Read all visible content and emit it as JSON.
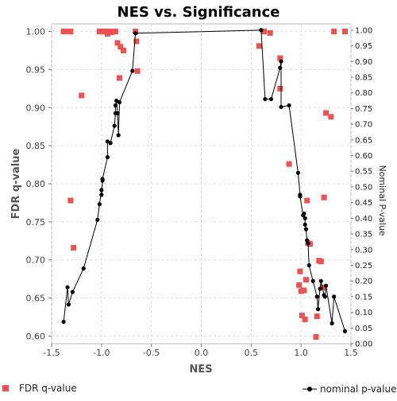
{
  "chart_data": {
    "type": "scatter",
    "title": "NES vs. Significance",
    "xlabel": "NES",
    "ylabel": "FDR q-value",
    "y2label": "Nominal P-value",
    "xlim": [
      -1.5,
      1.5
    ],
    "ylim": [
      0.59,
      1.01
    ],
    "y2lim": [
      0.0,
      1.02
    ],
    "xticks": [
      "-1.5",
      "-1.0",
      "-0.5",
      "0.0",
      "0.5",
      "1.0",
      "1.5"
    ],
    "yticks": [
      "0.60",
      "0.65",
      "0.70",
      "0.75",
      "0.80",
      "0.85",
      "0.90",
      "0.95",
      "1.00"
    ],
    "y2ticks": [
      "0.00",
      "0.05",
      "0.10",
      "0.15",
      "0.20",
      "0.25",
      "0.30",
      "0.35",
      "0.40",
      "0.45",
      "0.50",
      "0.55",
      "0.60",
      "0.65",
      "0.70",
      "0.75",
      "0.80",
      "0.85",
      "0.90",
      "0.95",
      "1.00"
    ],
    "grid": true,
    "legend_position": "bottom",
    "series": [
      {
        "name": "FDR q-value",
        "axis": "left",
        "color": "#f05050",
        "marker": "square",
        "points": [
          [
            -1.38,
            1.0
          ],
          [
            -1.35,
            1.0
          ],
          [
            -1.31,
            1.0
          ],
          [
            -1.31,
            0.778
          ],
          [
            -1.28,
            0.716
          ],
          [
            -1.2,
            0.916
          ],
          [
            -1.02,
            1.0
          ],
          [
            -1.0,
            1.0
          ],
          [
            -0.97,
            1.0
          ],
          [
            -0.95,
            1.0
          ],
          [
            -0.94,
            0.997
          ],
          [
            -0.92,
            1.0
          ],
          [
            -0.9,
            0.999
          ],
          [
            -0.87,
            1.0
          ],
          [
            -0.86,
            1.0
          ],
          [
            -0.84,
            0.985
          ],
          [
            -0.81,
            0.98
          ],
          [
            -0.82,
            0.939
          ],
          [
            -0.78,
            0.975
          ],
          [
            -0.66,
            1.0
          ],
          [
            -0.65,
            0.987
          ],
          [
            -0.64,
            0.948
          ],
          [
            0.58,
            0.981
          ],
          [
            0.63,
            1.0
          ],
          [
            0.69,
            0.998
          ],
          [
            0.79,
            0.965
          ],
          [
            0.79,
            0.925
          ],
          [
            0.88,
            0.826
          ],
          [
            0.98,
            0.667
          ],
          [
            0.99,
            0.685
          ],
          [
            1.0,
            0.659
          ],
          [
            1.01,
            0.627
          ],
          [
            1.03,
            0.66
          ],
          [
            1.04,
            0.622
          ],
          [
            1.05,
            0.674
          ],
          [
            1.06,
            0.778
          ],
          [
            1.07,
            0.722
          ],
          [
            1.09,
            0.721
          ],
          [
            1.15,
            0.599
          ],
          [
            1.16,
            0.626
          ],
          [
            1.18,
            0.699
          ],
          [
            1.2,
            0.698
          ],
          [
            1.22,
            0.664
          ],
          [
            1.23,
            0.782
          ],
          [
            1.25,
            0.893
          ],
          [
            1.3,
            0.888
          ],
          [
            1.33,
            1.0
          ],
          [
            1.44,
            1.0
          ]
        ]
      },
      {
        "name": "nominal p-value",
        "axis": "right",
        "color": "#000000",
        "marker": "circle",
        "line": true,
        "points": [
          [
            -1.38,
            0.07
          ],
          [
            -1.34,
            0.18
          ],
          [
            -1.33,
            0.125
          ],
          [
            -1.29,
            0.165
          ],
          [
            -1.18,
            0.24
          ],
          [
            -1.04,
            0.395
          ],
          [
            -1.02,
            0.445
          ],
          [
            -1.0,
            0.49
          ],
          [
            -1.0,
            0.475
          ],
          [
            -0.99,
            0.52
          ],
          [
            -0.99,
            0.525
          ],
          [
            -0.94,
            0.595
          ],
          [
            -0.94,
            0.645
          ],
          [
            -0.91,
            0.64
          ],
          [
            -0.87,
            0.695
          ],
          [
            -0.86,
            0.735
          ],
          [
            -0.86,
            0.76
          ],
          [
            -0.85,
            0.775
          ],
          [
            -0.84,
            0.735
          ],
          [
            -0.83,
            0.665
          ],
          [
            -0.82,
            0.77
          ],
          [
            -0.69,
            0.87
          ],
          [
            -0.66,
            0.99
          ],
          [
            0.6,
            1.0
          ],
          [
            0.64,
            0.78
          ],
          [
            0.7,
            0.78
          ],
          [
            0.79,
            0.88
          ],
          [
            0.8,
            0.9
          ],
          [
            0.8,
            0.755
          ],
          [
            0.88,
            0.76
          ],
          [
            0.97,
            0.545
          ],
          [
            0.99,
            0.475
          ],
          [
            0.99,
            0.47
          ],
          [
            1.02,
            0.41
          ],
          [
            1.03,
            0.415
          ],
          [
            1.04,
            0.4
          ],
          [
            1.04,
            0.38
          ],
          [
            1.05,
            0.365
          ],
          [
            1.06,
            0.33
          ],
          [
            1.07,
            0.32
          ],
          [
            1.08,
            0.25
          ],
          [
            1.12,
            0.2
          ],
          [
            1.16,
            0.15
          ],
          [
            1.17,
            0.11
          ],
          [
            1.19,
            0.175
          ],
          [
            1.2,
            0.2
          ],
          [
            1.23,
            0.155
          ],
          [
            1.24,
            0.15
          ],
          [
            1.25,
            0.185
          ],
          [
            1.31,
            0.065
          ],
          [
            1.33,
            0.15
          ],
          [
            1.44,
            0.04
          ]
        ]
      }
    ]
  }
}
